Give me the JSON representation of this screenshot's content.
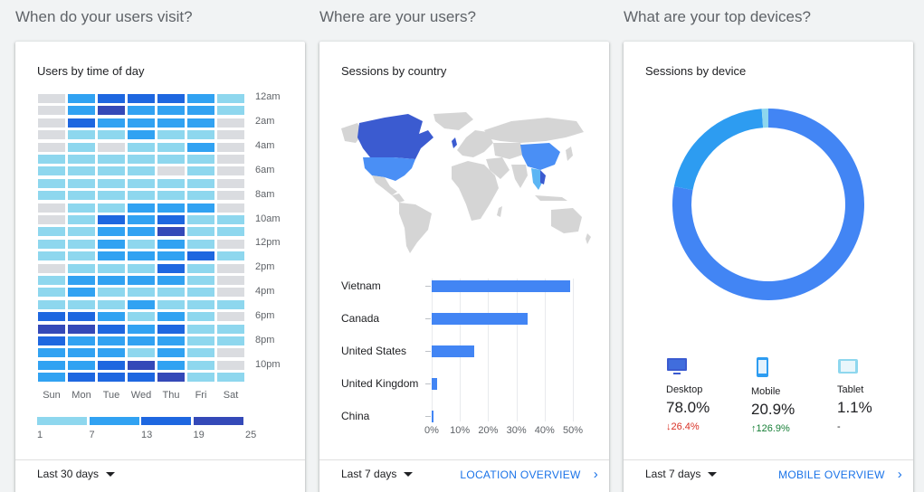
{
  "sections": {
    "visit_title": "When do your users visit?",
    "where_title": "Where are your users?",
    "devices_title": "What are your top devices?"
  },
  "time_card": {
    "title": "Users by time of day",
    "hour_labels": [
      "12am",
      "2am",
      "4am",
      "6am",
      "8am",
      "10am",
      "12pm",
      "2pm",
      "4pm",
      "6pm",
      "8pm",
      "10pm"
    ],
    "day_labels": [
      "Sun",
      "Mon",
      "Tue",
      "Wed",
      "Thu",
      "Fri",
      "Sat"
    ],
    "legend_labels": [
      "1",
      "7",
      "13",
      "19",
      "25"
    ],
    "legend_colors": [
      "#8ed7ee",
      "#31a2f2",
      "#1e67e0",
      "#3449b8"
    ],
    "empty_color": "#dadce0",
    "grid_levels": [
      [
        0,
        2,
        3,
        3,
        3,
        2,
        1
      ],
      [
        0,
        2,
        4,
        2,
        2,
        2,
        1
      ],
      [
        0,
        3,
        2,
        2,
        2,
        2,
        0
      ],
      [
        0,
        1,
        1,
        2,
        1,
        1,
        0
      ],
      [
        0,
        1,
        0,
        1,
        1,
        2,
        0
      ],
      [
        1,
        1,
        1,
        1,
        1,
        1,
        0
      ],
      [
        1,
        1,
        1,
        1,
        0,
        1,
        0
      ],
      [
        1,
        1,
        1,
        1,
        1,
        1,
        0
      ],
      [
        1,
        1,
        1,
        1,
        1,
        1,
        0
      ],
      [
        0,
        1,
        1,
        2,
        2,
        2,
        0
      ],
      [
        0,
        1,
        3,
        2,
        3,
        1,
        1
      ],
      [
        1,
        1,
        2,
        2,
        4,
        1,
        1
      ],
      [
        1,
        1,
        2,
        1,
        2,
        1,
        0
      ],
      [
        1,
        1,
        2,
        2,
        2,
        3,
        1
      ],
      [
        0,
        1,
        1,
        1,
        3,
        1,
        0
      ],
      [
        1,
        2,
        2,
        2,
        2,
        1,
        0
      ],
      [
        1,
        2,
        1,
        1,
        1,
        1,
        0
      ],
      [
        1,
        1,
        1,
        2,
        1,
        1,
        1
      ],
      [
        3,
        3,
        2,
        1,
        2,
        1,
        0
      ],
      [
        4,
        4,
        3,
        2,
        3,
        1,
        1
      ],
      [
        3,
        2,
        2,
        2,
        2,
        1,
        1
      ],
      [
        2,
        2,
        2,
        1,
        2,
        1,
        0
      ],
      [
        2,
        2,
        3,
        4,
        2,
        1,
        0
      ],
      [
        2,
        3,
        3,
        3,
        4,
        1,
        1
      ]
    ],
    "range_label": "Last 30 days"
  },
  "country_card": {
    "title": "Sessions by country",
    "countries": [
      "Vietnam",
      "Canada",
      "United States",
      "United Kingdom",
      "China"
    ],
    "values": [
      49,
      34,
      15,
      2,
      0.3
    ],
    "axis_labels": [
      "0%",
      "10%",
      "20%",
      "30%",
      "40%",
      "50%"
    ],
    "map_colors": {
      "land": "#d5d5d5",
      "dark": "#3b5bd0",
      "mid": "#4a8ff5",
      "light": "#5bb5f4"
    },
    "range_label": "Last 7 days",
    "link_label": "LOCATION OVERVIEW"
  },
  "device_card": {
    "title": "Sessions by device",
    "devices": [
      {
        "name": "Desktop",
        "pct": "78.0%",
        "change": "26.4%",
        "arrow": "↓",
        "trend": "down",
        "value": 78.0,
        "color": "#4285f4",
        "icon": "desktop-icon"
      },
      {
        "name": "Mobile",
        "pct": "20.9%",
        "change": "126.9%",
        "arrow": "↑",
        "trend": "up",
        "value": 20.9,
        "color": "#2d9cf1",
        "icon": "mobile-icon"
      },
      {
        "name": "Tablet",
        "pct": "1.1%",
        "change": "-",
        "arrow": "",
        "trend": "none",
        "value": 1.1,
        "color": "#8ed7ee",
        "icon": "tablet-icon"
      }
    ],
    "range_label": "Last 7 days",
    "link_label": "MOBILE OVERVIEW"
  }
}
